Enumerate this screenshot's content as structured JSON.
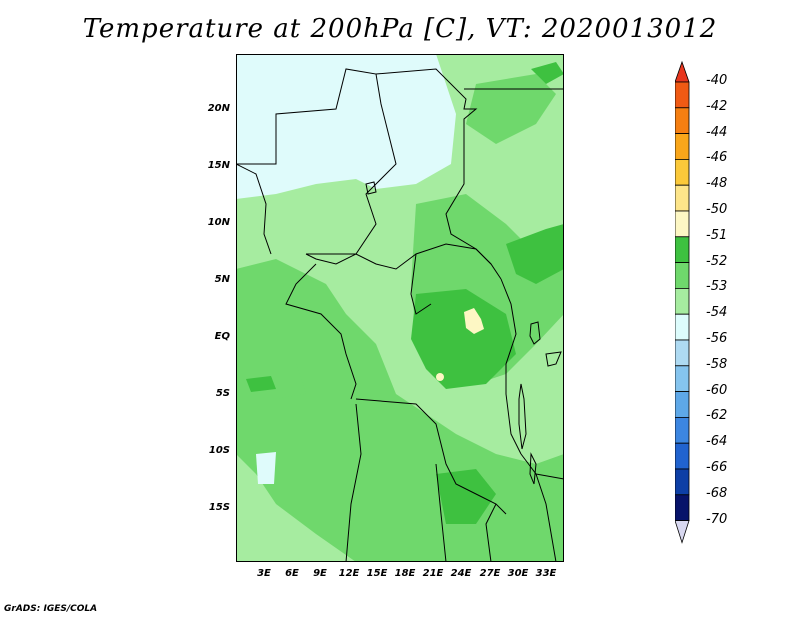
{
  "title": "Temperature at 200hPa [C], VT: 2020013012",
  "footer": "GrADS: IGES/COLA",
  "y_axis_labels": [
    "20N",
    "15N",
    "10N",
    "5N",
    "EQ",
    "5S",
    "10S",
    "15S"
  ],
  "x_axis_labels": [
    "3E",
    "6E",
    "9E",
    "12E",
    "15E",
    "18E",
    "21E",
    "24E",
    "27E",
    "30E",
    "33E"
  ],
  "colorbar": {
    "labels": [
      "-40",
      "-42",
      "-44",
      "-46",
      "-48",
      "-50",
      "-51",
      "-52",
      "-53",
      "-54",
      "-56",
      "-58",
      "-60",
      "-62",
      "-64",
      "-66",
      "-68",
      "-70"
    ],
    "colors": [
      "#e8361e",
      "#f05a14",
      "#f57f12",
      "#f9a61a",
      "#fbc93a",
      "#fde58a",
      "#fdf7c4",
      "#3ec140",
      "#6fd86c",
      "#a6eca0",
      "#ddfcfc",
      "#aedaf2",
      "#85c4ee",
      "#5ea8e8",
      "#3c86e1",
      "#2163cf",
      "#0d3fa6",
      "#07136a",
      "#d8d8f0"
    ]
  },
  "map_colors": {
    "light_cyan": "#dffbfb",
    "pale_green": "#a6eca0",
    "mid_green": "#6fd86c",
    "dark_green": "#3ec140",
    "yellow": "#fdf7c4"
  }
}
